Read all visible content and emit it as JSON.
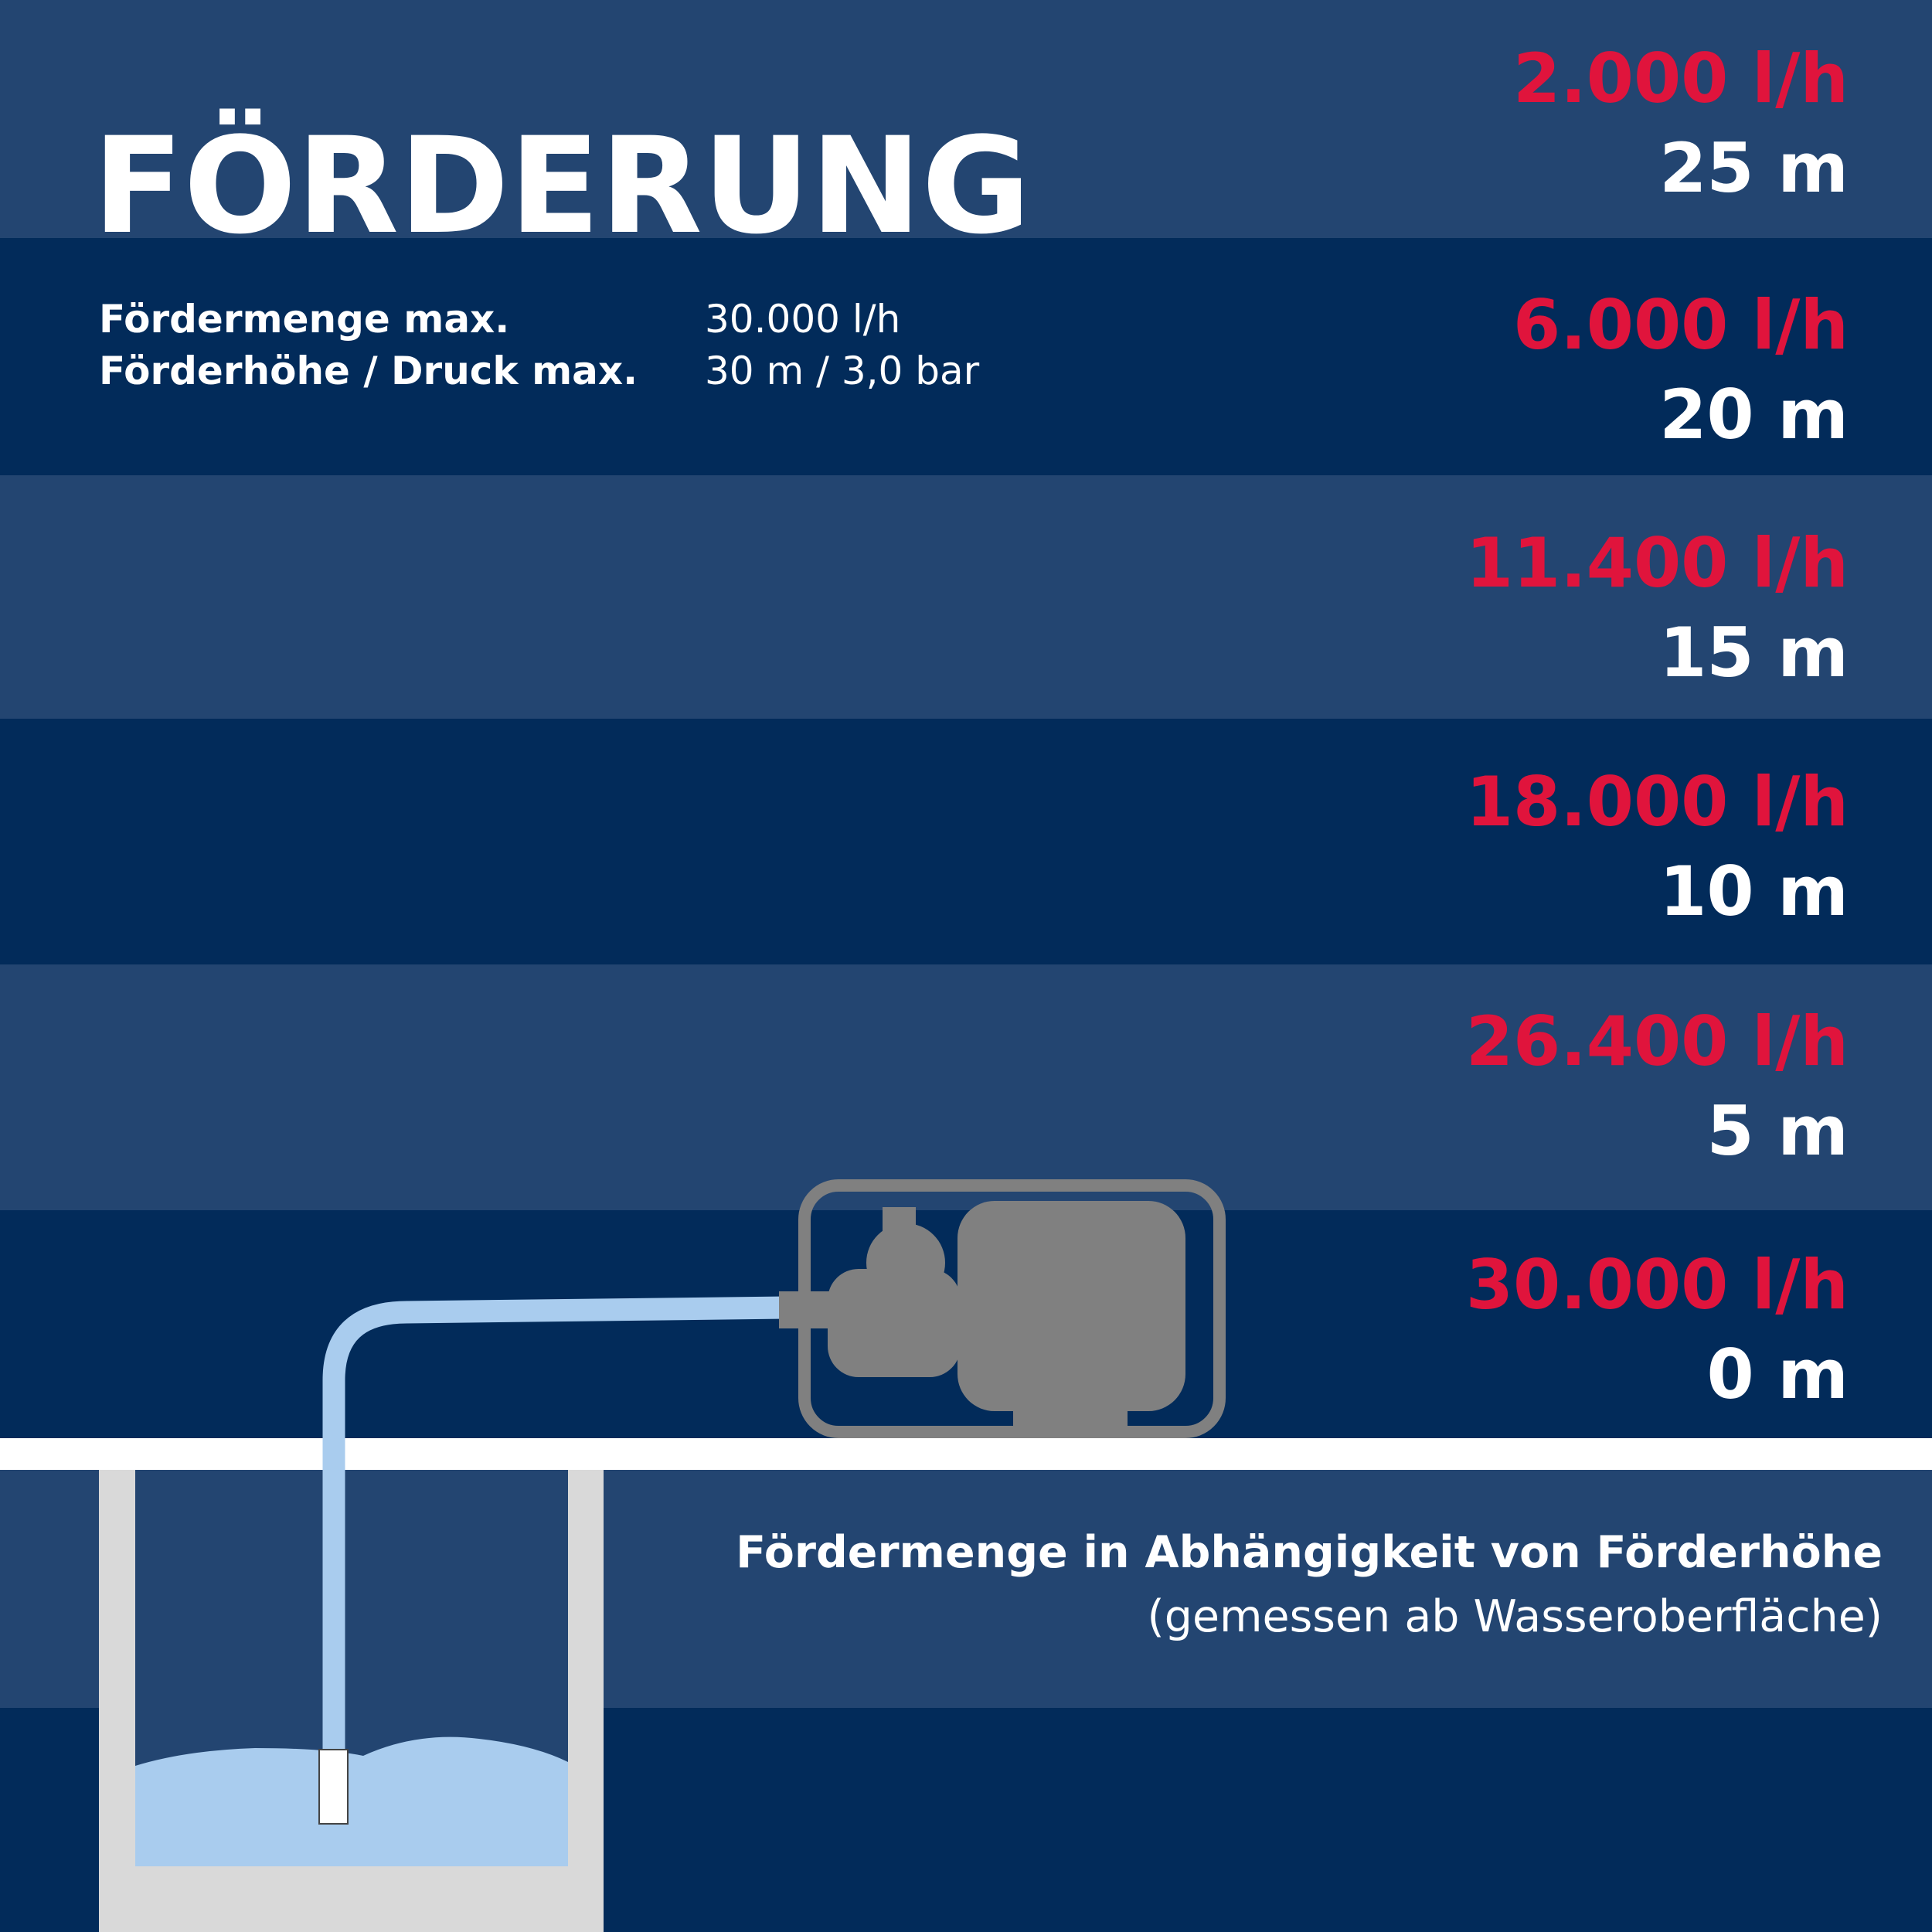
{
  "header": {
    "title": "FÖRDERUNG"
  },
  "specs": [
    {
      "label": "Fördermenge max.",
      "value": "30.000 l/h"
    },
    {
      "label": "Förderhöhe / Druck max.",
      "value": "30 m / 3,0 bar"
    }
  ],
  "levels": [
    {
      "flow": "2.000 l/h",
      "height": "25 m"
    },
    {
      "flow": "6.000 l/h",
      "height": "20 m"
    },
    {
      "flow": "11.400 l/h",
      "height": "15 m"
    },
    {
      "flow": "18.000 l/h",
      "height": "10 m"
    },
    {
      "flow": "26.400 l/h",
      "height": "5 m"
    },
    {
      "flow": "30.000 l/h",
      "height": "0 m"
    }
  ],
  "caption": {
    "title": "Fördermenge in Abhängigkeit von Förderhöhe",
    "subtitle": "(gemessen ab Wasseroberfläche)"
  }
}
